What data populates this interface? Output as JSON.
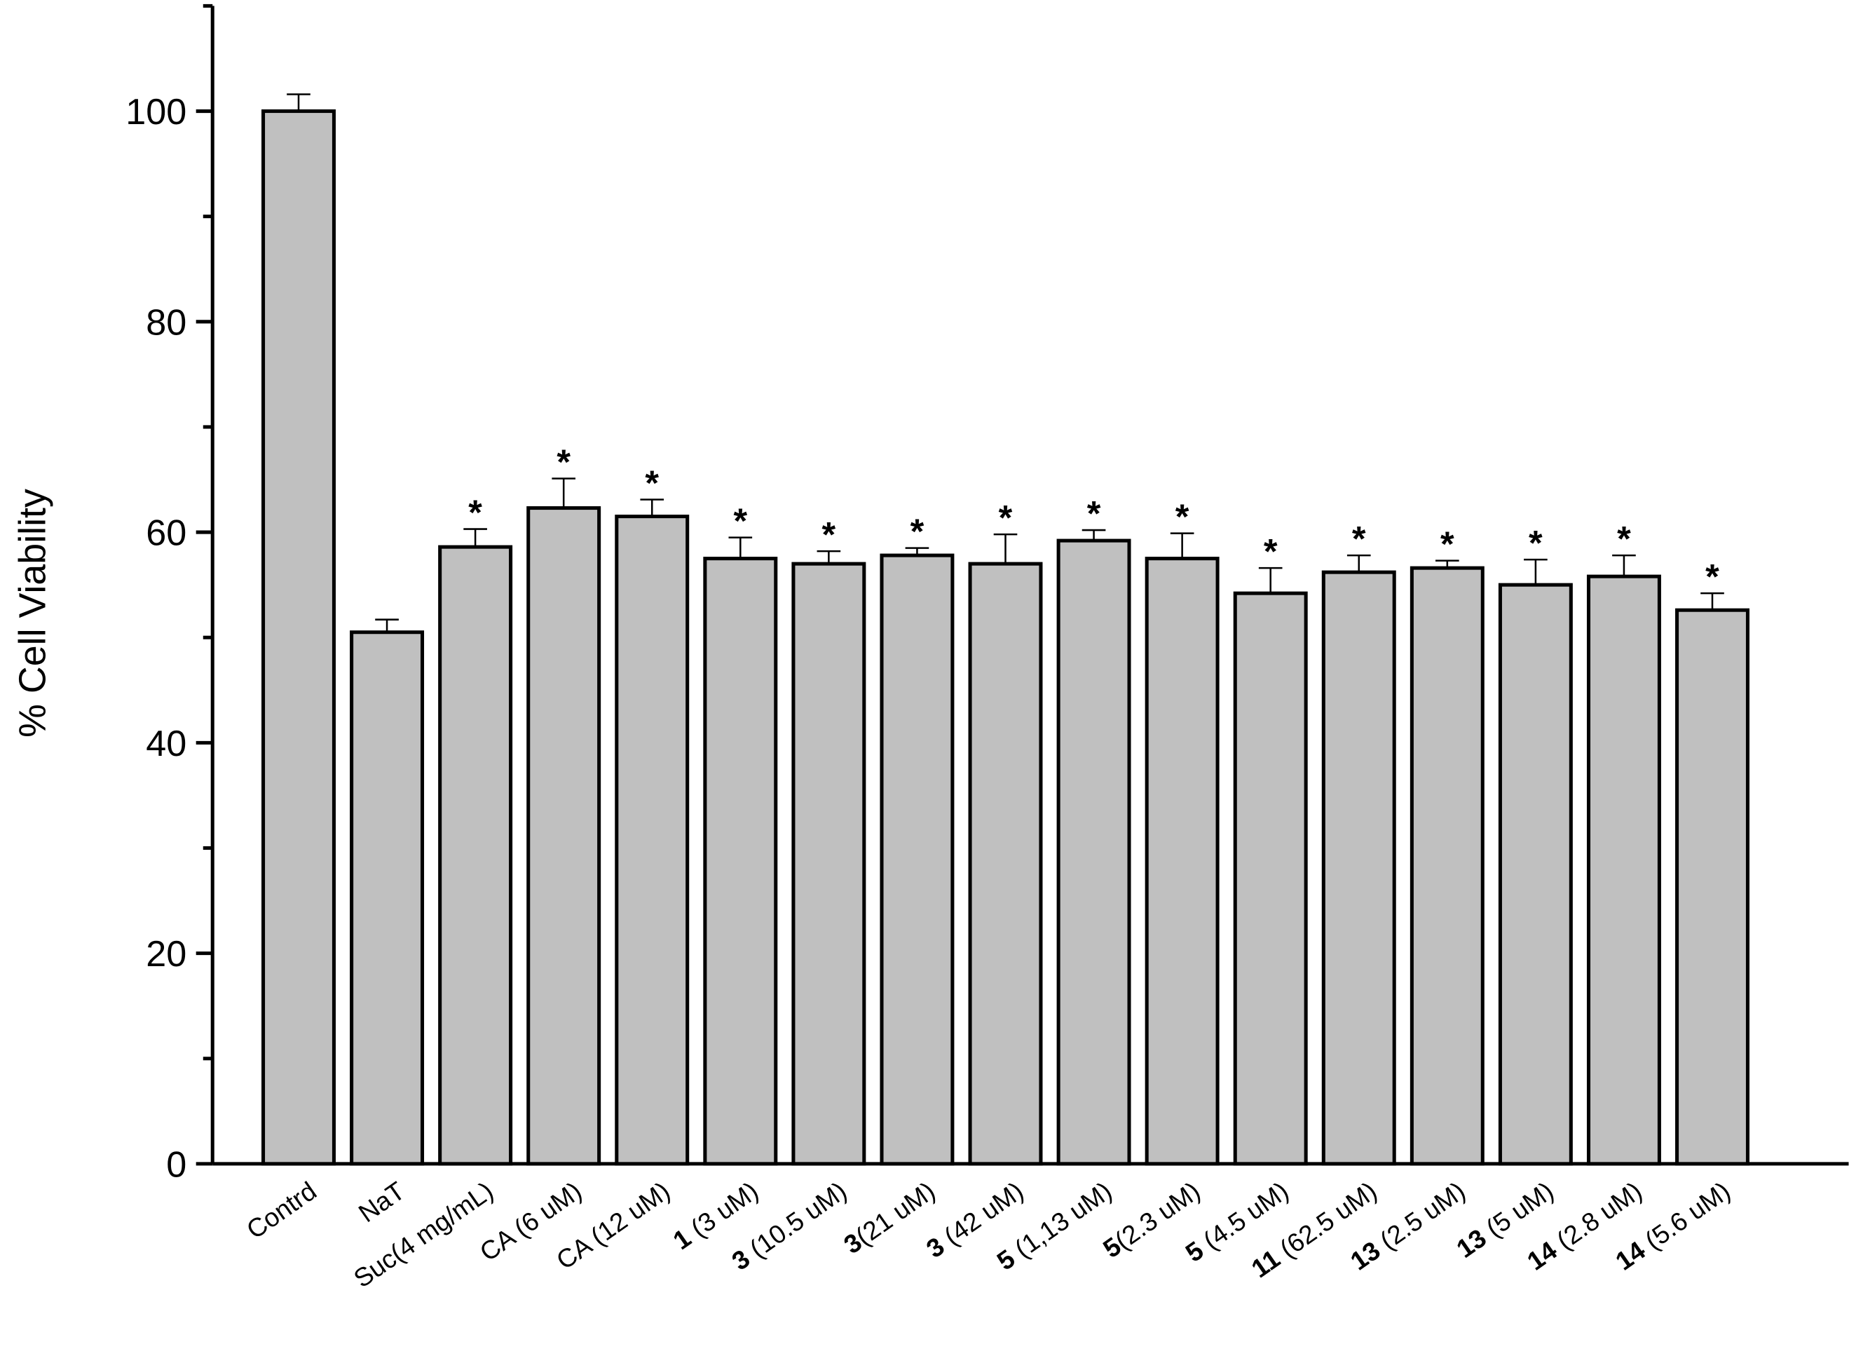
{
  "chart_data": {
    "type": "bar",
    "y_label": "% Cell Viability",
    "categories": [
      "Contrd",
      "NaT",
      "Suc(4 mg/mL)",
      "CA (6 uM)",
      "CA (12 uM)",
      " (3 uM)",
      " (10.5 uM)",
      "(21 uM)",
      " (42 uM)",
      " (1,13 uM)",
      "(2.3 uM)",
      " (4.5 uM)",
      " (62.5 uM)",
      " (2.5 uM)",
      " (5 uM)",
      " (2.8 uM)",
      " (5.6 uM)"
    ],
    "category_compounds": [
      null,
      null,
      null,
      null,
      null,
      "1",
      "3",
      "3",
      "3",
      "5",
      "5",
      "5",
      "11",
      "13",
      "13",
      "14",
      "14"
    ],
    "values": [
      100,
      50.5,
      58.6,
      62.3,
      61.5,
      57.5,
      57.0,
      57.8,
      57.0,
      59.2,
      57.5,
      54.2,
      56.2,
      56.6,
      55.0,
      55.8,
      52.6
    ],
    "errors": [
      1.6,
      1.2,
      1.7,
      2.8,
      1.6,
      2.0,
      1.2,
      0.7,
      2.8,
      1.0,
      2.4,
      2.4,
      1.6,
      0.7,
      2.4,
      2.0,
      1.6
    ],
    "annotations": [
      null,
      null,
      "*",
      "*",
      "*",
      "*",
      "*",
      "*",
      "*",
      "*",
      "*",
      "*",
      "*",
      "*",
      "*",
      "*",
      "*"
    ],
    "color": "#c0c0c0",
    "ylim": [
      0,
      110
    ],
    "yticks": [
      0,
      20,
      40,
      60,
      80,
      100
    ],
    "yminor_ticks": [
      10,
      30,
      50,
      70,
      90,
      110
    ]
  }
}
